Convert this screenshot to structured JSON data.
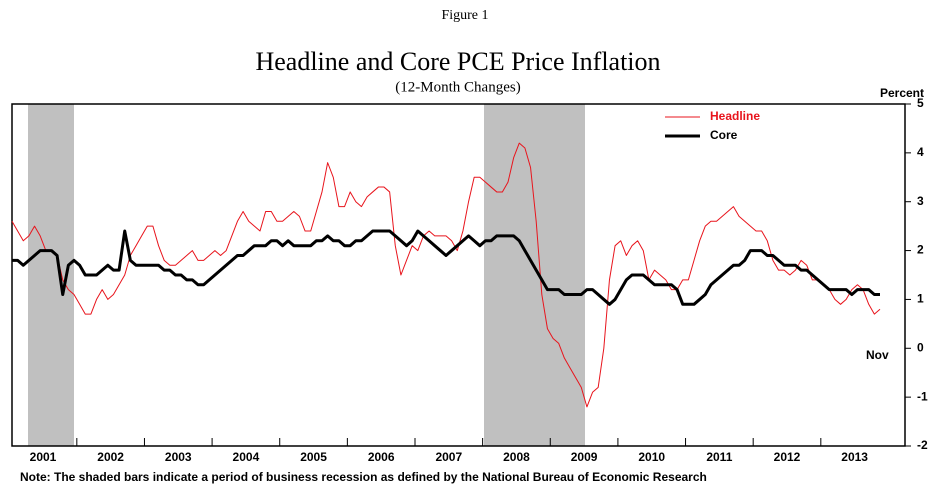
{
  "chart_data": {
    "type": "line",
    "figure_label": "Figure 1",
    "title": "Headline and Core PCE Price Inflation",
    "subtitle": "(12-Month Changes)",
    "y_axis_label": "Percent",
    "annotation": "Nov",
    "note": "Note: The shaded bars indicate a period of business recession as defined by the National Bureau of Economic Research",
    "categories": [
      null,
      null,
      null,
      null,
      null,
      "2001",
      null,
      null,
      null,
      null,
      null,
      null,
      null,
      null,
      null,
      null,
      null,
      "2002",
      null,
      null,
      null,
      null,
      null,
      null,
      null,
      null,
      null,
      null,
      null,
      "2003",
      null,
      null,
      null,
      null,
      null,
      null,
      null,
      null,
      null,
      null,
      null,
      "2004",
      null,
      null,
      null,
      null,
      null,
      null,
      null,
      null,
      null,
      null,
      null,
      "2005",
      null,
      null,
      null,
      null,
      null,
      null,
      null,
      null,
      null,
      null,
      null,
      "2006",
      null,
      null,
      null,
      null,
      null,
      null,
      null,
      null,
      null,
      null,
      null,
      "2007",
      null,
      null,
      null,
      null,
      null,
      null,
      null,
      null,
      null,
      null,
      null,
      "2008",
      null,
      null,
      null,
      null,
      null,
      null,
      null,
      null,
      null,
      null,
      null,
      "2009",
      null,
      null,
      null,
      null,
      null,
      null,
      null,
      null,
      null,
      null,
      null,
      "2010",
      null,
      null,
      null,
      null,
      null,
      null,
      null,
      null,
      null,
      null,
      null,
      "2011",
      null,
      null,
      null,
      null,
      null,
      null,
      null,
      null,
      null,
      null,
      null,
      "2012",
      null,
      null,
      null,
      null,
      null,
      null,
      null,
      null,
      null,
      null,
      null,
      "2013",
      null,
      null,
      null,
      null,
      null
    ],
    "series": [
      {
        "name": "Headline",
        "color": "#e8141c",
        "width": 1,
        "values": [
          2.6,
          2.4,
          2.2,
          2.3,
          2.5,
          2.3,
          2.0,
          2.0,
          1.9,
          1.4,
          1.2,
          1.1,
          0.9,
          0.7,
          0.7,
          1.0,
          1.2,
          1.0,
          1.1,
          1.3,
          1.5,
          1.9,
          2.1,
          2.3,
          2.5,
          2.5,
          2.1,
          1.8,
          1.7,
          1.7,
          1.8,
          1.9,
          2.0,
          1.8,
          1.8,
          1.9,
          2.0,
          1.9,
          2.0,
          2.3,
          2.6,
          2.8,
          2.6,
          2.5,
          2.4,
          2.8,
          2.8,
          2.6,
          2.6,
          2.7,
          2.8,
          2.7,
          2.4,
          2.4,
          2.8,
          3.2,
          3.8,
          3.5,
          2.9,
          2.9,
          3.2,
          3.0,
          2.9,
          3.1,
          3.2,
          3.3,
          3.3,
          3.2,
          2.1,
          1.5,
          1.8,
          2.1,
          2.0,
          2.3,
          2.4,
          2.3,
          2.3,
          2.3,
          2.2,
          2.0,
          2.4,
          3.0,
          3.5,
          3.5,
          3.4,
          3.3,
          3.2,
          3.2,
          3.4,
          3.9,
          4.2,
          4.1,
          3.7,
          2.6,
          1.1,
          0.4,
          0.2,
          0.1,
          -0.2,
          -0.4,
          -0.6,
          -0.8,
          -1.2,
          -0.9,
          -0.8,
          0.0,
          1.4,
          2.1,
          2.2,
          1.9,
          2.1,
          2.2,
          2.0,
          1.4,
          1.6,
          1.5,
          1.4,
          1.2,
          1.2,
          1.4,
          1.4,
          1.8,
          2.2,
          2.5,
          2.6,
          2.6,
          2.7,
          2.8,
          2.9,
          2.7,
          2.6,
          2.5,
          2.4,
          2.4,
          2.2,
          1.8,
          1.6,
          1.6,
          1.5,
          1.6,
          1.8,
          1.7,
          1.4,
          1.4,
          1.3,
          1.2,
          1.0,
          0.9,
          1.0,
          1.2,
          1.3,
          1.2,
          0.9,
          0.7,
          0.8
        ]
      },
      {
        "name": "Core",
        "color": "#000000",
        "width": 3,
        "values": [
          1.8,
          1.8,
          1.7,
          1.8,
          1.9,
          2.0,
          2.0,
          2.0,
          1.9,
          1.1,
          1.7,
          1.8,
          1.7,
          1.5,
          1.5,
          1.5,
          1.6,
          1.7,
          1.6,
          1.6,
          2.4,
          1.8,
          1.7,
          1.7,
          1.7,
          1.7,
          1.7,
          1.6,
          1.6,
          1.5,
          1.5,
          1.4,
          1.4,
          1.3,
          1.3,
          1.4,
          1.5,
          1.6,
          1.7,
          1.8,
          1.9,
          1.9,
          2.0,
          2.1,
          2.1,
          2.1,
          2.2,
          2.2,
          2.1,
          2.2,
          2.1,
          2.1,
          2.1,
          2.1,
          2.2,
          2.2,
          2.3,
          2.2,
          2.2,
          2.1,
          2.1,
          2.2,
          2.2,
          2.3,
          2.4,
          2.4,
          2.4,
          2.4,
          2.3,
          2.2,
          2.1,
          2.2,
          2.4,
          2.3,
          2.2,
          2.1,
          2.0,
          1.9,
          2.0,
          2.1,
          2.2,
          2.3,
          2.2,
          2.1,
          2.2,
          2.2,
          2.3,
          2.3,
          2.3,
          2.3,
          2.2,
          2.0,
          1.8,
          1.6,
          1.4,
          1.2,
          1.2,
          1.2,
          1.1,
          1.1,
          1.1,
          1.1,
          1.2,
          1.2,
          1.1,
          1.0,
          0.9,
          1.0,
          1.2,
          1.4,
          1.5,
          1.5,
          1.5,
          1.4,
          1.3,
          1.3,
          1.3,
          1.3,
          1.2,
          0.9,
          0.9,
          0.9,
          1.0,
          1.1,
          1.3,
          1.4,
          1.5,
          1.6,
          1.7,
          1.7,
          1.8,
          2.0,
          2.0,
          2.0,
          1.9,
          1.9,
          1.8,
          1.7,
          1.7,
          1.7,
          1.6,
          1.6,
          1.5,
          1.4,
          1.3,
          1.2,
          1.2,
          1.2,
          1.2,
          1.1,
          1.2,
          1.2,
          1.2,
          1.1,
          1.1
        ]
      }
    ],
    "ylim": [
      -2,
      5
    ],
    "yticks": [
      -2,
      -1,
      0,
      1,
      2,
      3,
      4,
      5
    ],
    "grid": false
  }
}
